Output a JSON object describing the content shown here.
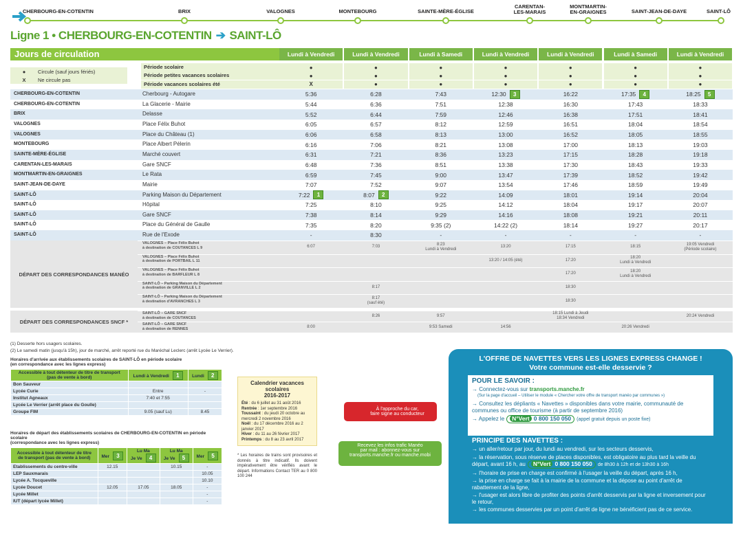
{
  "route": {
    "stops": [
      "CHERBOURG-EN-COTENTIN",
      "BRIX",
      "VALOGNES",
      "MONTEBOURG",
      "SAINTE-MÈRE-ÉGLISE",
      "CARENTAN-\nLES-MARAIS",
      "MONTMARTIN-\nEN-GRAIGNES",
      "SAINT-JEAN-DE-DAYE",
      "SAINT-LÔ"
    ]
  },
  "title": {
    "line": "Ligne 1 •",
    "from": "CHERBOURG-EN-COTENTIN",
    "to": "SAINT-LÔ"
  },
  "timetable": {
    "header": "Jours de circulation",
    "days": [
      "Lundi à Vendredi",
      "Lundi à Vendredi",
      "Lundi à Samedi",
      "Lundi à Vendredi",
      "Lundi à Vendredi",
      "Lundi à Samedi",
      "Lundi à Vendredi"
    ],
    "legend": [
      {
        "symbol": "●",
        "text": "Circule (sauf jours fériés)"
      },
      {
        "symbol": "X",
        "text": "Ne circule pas"
      }
    ],
    "periods": [
      {
        "name": "Période scolaire",
        "marks": [
          "●",
          "●",
          "●",
          "●",
          "●",
          "●",
          "●"
        ]
      },
      {
        "name": "Période petites vacances scolaires",
        "marks": [
          "●",
          "●",
          "●",
          "●",
          "●",
          "●",
          "●"
        ]
      },
      {
        "name": "Période vacances scolaires été",
        "marks": [
          "X",
          "●",
          "●",
          "●",
          "●",
          "●",
          "●"
        ]
      }
    ],
    "rows": [
      {
        "town": "CHERBOURG-EN-COTENTIN",
        "stop": "Cherbourg - Autogare",
        "times": [
          "5:36",
          "6:28",
          "7:43",
          {
            "text": "12:30",
            "badge": "3"
          },
          "16:22",
          {
            "text": "17:35",
            "badge": "4"
          },
          {
            "text": "18:25",
            "badge": "5"
          }
        ]
      },
      {
        "town": "CHERBOURG-EN-COTENTIN",
        "stop": "La Glacerie - Mairie",
        "times": [
          "5:44",
          "6:36",
          "7:51",
          "12:38",
          "16:30",
          "17:43",
          "18:33"
        ]
      },
      {
        "town": "BRIX",
        "stop": "Delasse",
        "times": [
          "5:52",
          "6:44",
          "7:59",
          "12:46",
          "16:38",
          "17:51",
          "18:41"
        ]
      },
      {
        "town": "VALOGNES",
        "stop": "Place Félix Buhot",
        "times": [
          "6:05",
          "6:57",
          "8:12",
          "12:59",
          "16:51",
          "18:04",
          "18:54"
        ]
      },
      {
        "town": "VALOGNES",
        "stop": "Place du Château (1)",
        "times": [
          "6:06",
          "6:58",
          "8:13",
          "13:00",
          "16:52",
          "18:05",
          "18:55"
        ]
      },
      {
        "town": "MONTEBOURG",
        "stop": "Place Albert Pélerin",
        "times": [
          "6:16",
          "7:06",
          "8:21",
          "13:08",
          "17:00",
          "18:13",
          "19:03"
        ]
      },
      {
        "town": "SAINTE-MÈRE-ÉGLISE",
        "stop": "Marché couvert",
        "times": [
          "6:31",
          "7:21",
          "8:36",
          "13:23",
          "17:15",
          "18:28",
          "19:18"
        ]
      },
      {
        "town": "CARENTAN-LES-MARAIS",
        "stop": "Gare SNCF",
        "times": [
          "6:48",
          "7:36",
          "8:51",
          "13:38",
          "17:30",
          "18:43",
          "19:33"
        ]
      },
      {
        "town": "MONTMARTIN-EN-GRAIGNES",
        "stop": "Le Rata",
        "times": [
          "6:59",
          "7:45",
          "9:00",
          "13:47",
          "17:39",
          "18:52",
          "19:42"
        ]
      },
      {
        "town": "SAINT-JEAN-DE-DAYE",
        "stop": "Mairie",
        "times": [
          "7:07",
          "7:52",
          "9:07",
          "13:54",
          "17:46",
          "18:59",
          "19:49"
        ]
      },
      {
        "town": "SAINT-LÔ",
        "stop": "Parking Maison du Département",
        "times": [
          {
            "text": "7:22",
            "badge": "1"
          },
          {
            "text": "8:07",
            "badge": "2"
          },
          "9:22",
          "14:09",
          "18:01",
          "19:14",
          "20:04"
        ]
      },
      {
        "town": "SAINT-LÔ",
        "stop": "Hôpital",
        "times": [
          "7:25",
          "8:10",
          "9:25",
          "14:12",
          "18:04",
          "19:17",
          "20:07"
        ]
      },
      {
        "town": "SAINT-LÔ",
        "stop": "Gare SNCF",
        "times": [
          "7:38",
          "8:14",
          "9:29",
          "14:16",
          "18:08",
          "19:21",
          "20:11"
        ]
      },
      {
        "town": "SAINT-LÔ",
        "stop": "Place du Général de Gaulle",
        "times": [
          "7:35",
          "8:20",
          "9:35 (2)",
          "14:22 (2)",
          "18:14",
          "19:27",
          "20:17"
        ]
      },
      {
        "town": "SAINT-LÔ",
        "stop": "Rue de l'Exode",
        "times": [
          "-",
          "8:30",
          "-",
          "-",
          "-",
          "-",
          "-"
        ]
      }
    ],
    "connections": [
      {
        "title": "DÉPART DES CORRESPONDANCES MANÉO",
        "rows": [
          {
            "dest": "VALOGNES – Place Félix Buhot\nà destination de COUTANCES L 9",
            "times": [
              "6:07",
              "7:03",
              "8:23\nLundi à Vendredi",
              "13:20",
              "17:15",
              "18:15",
              "19:05 Vendredi\n(Période scolaire)"
            ]
          },
          {
            "dest": "VALOGNES – Place Félix Buhot\nà destination de PORTBAIL L 11",
            "times": [
              null,
              null,
              null,
              "13:20 / 14:05 (été)",
              "17:20",
              "18:20\nLundi à Vendredi",
              null
            ]
          },
          {
            "dest": "VALOGNES – Place Félix Buhot\nà destination de BARFLEUR L 8",
            "times": [
              null,
              null,
              null,
              null,
              "17:20",
              "18:20\nLundi à Vendredi",
              null
            ]
          },
          {
            "dest": "SAINT-LÔ – Parking Maison du Département\nà destination de GRANVILLE L 2",
            "times": [
              null,
              "8:17",
              null,
              null,
              "18:30",
              null,
              null
            ]
          },
          {
            "dest": "SAINT-LÔ – Parking Maison du Département\nà destination d'AVRANCHES L 3",
            "times": [
              null,
              "8:17\n(sauf été)",
              null,
              null,
              "18:30",
              null,
              null
            ]
          }
        ]
      },
      {
        "title": "DÉPART DES CORRESPONDANCES SNCF *",
        "rows": [
          {
            "dest": "SAINT-LÔ – GARE SNCF\nà destination de COUTANCES",
            "times": [
              null,
              "8:26",
              "9:57",
              null,
              "18:15 Lundi à Jeudi\n18:34 Vendredi",
              null,
              "20:24 Vendredi"
            ]
          },
          {
            "dest": "SAINT-LÔ – GARE SNCF\nà destination de RENNES",
            "times": [
              "8:00",
              null,
              "9:53 Samedi",
              "14:56",
              null,
              "20:26 Vendredi",
              null
            ]
          }
        ]
      }
    ]
  },
  "notes": [
    "(1) Desserte hors usagers scolaires.",
    "(2) Le samedi matin (jusqu'à 15h), jour de marché, arrêt reporté rue du Maréchal Leclerc (arrêt Lycée Le Verrier)."
  ],
  "school": [
    {
      "title": "Horaires d'arrivée aux établissements scolaires de SAINT-LÔ en période scolaire\n(en correspondance avec les lignes express)",
      "header": [
        "Accessible à tout détenteur de titre de transport\n(pas de vente à bord)",
        {
          "text": "Lundi à Vendredi",
          "badge": "1"
        },
        {
          "text": "Lundi",
          "badge": "2"
        }
      ],
      "rows": [
        [
          "Bon Sauveur",
          null,
          null
        ],
        [
          "Lycée Curie",
          "Entre",
          "-"
        ],
        [
          "Institut Agneaux",
          "7:40 et 7:55",
          null
        ],
        [
          "Lycée Le Verrier (arrêt place du Goulle)",
          null,
          null
        ],
        [
          "Groupe FIM",
          "9.05 (sauf Lu)",
          "8.45"
        ]
      ]
    },
    {
      "title": "Horaires de départ des établissements scolaires de CHERBOURG-EN-COTENTIN en période scolaire\n(correspondance avec les lignes express)",
      "header": [
        "Accessible à tout détenteur de titre\nde transport (pas de vente à bord)",
        {
          "text": "Mer",
          "badge": "3"
        },
        {
          "text": "Lu Ma\nJe Ve",
          "badge": "4"
        },
        {
          "text": "Lu Ma\nJe Ve",
          "badge": "5"
        },
        {
          "text": "Mer",
          "badge": "5"
        }
      ],
      "rows": [
        [
          "Etablissements du centre-ville",
          "12.15",
          null,
          "10.15",
          "-"
        ],
        [
          "LEP Sauxmarais",
          null,
          null,
          null,
          "10.05"
        ],
        [
          "Lycée A. Tocqueville",
          null,
          null,
          null,
          "10.10"
        ],
        [
          "Lycée Doucet",
          "12.05",
          "17.05",
          "18.05",
          "-"
        ],
        [
          "Lycée Millet",
          null,
          null,
          null,
          "-"
        ],
        [
          "IUT (départ lycée Millet)",
          null,
          null,
          null,
          "-"
        ]
      ]
    }
  ],
  "calendar": {
    "title": "Calendrier vacances scolaires\n2016-2017",
    "entries": [
      {
        "label": "Été",
        "text": " : du 6 juillet au 31 août 2016"
      },
      {
        "label": "Rentrée",
        "text": " : 1er septembre 2016"
      },
      {
        "label": "Toussaint",
        "text": " : du jeudi 20 octobre au mercredi 2 novembre 2016"
      },
      {
        "label": "Noël",
        "text": " : du 17 décembre 2016 au 2 janvier 2017"
      },
      {
        "label": "Hiver",
        "text": " : du 11 au 26 février 2017"
      },
      {
        "label": "Printemps",
        "text": " : du 8 au 23 avril 2017"
      }
    ],
    "note": "* Les horaires de trains sont provisoires et donnés à titre indicatif. Ils doivent impérativement être vérifiés avant le départ. Informations Contact TER au 0 800 100 244"
  },
  "callouts": [
    "À l'approche du car,\nfaire signe au conducteur",
    "Recevez les infos trafic Manéo\npar mail : abonnez-vous sur\ntransports.manche.fr ou manche.mobi"
  ],
  "navettes": {
    "title": "L'OFFRE DE NAVETTES VERS LES LIGNES EXPRESS CHANGE !",
    "subtitle": "Votre commune est-elle desservie ?",
    "know_title": "POUR LE SAVOIR :",
    "know": [
      {
        "text": "Connectez-vous sur ",
        "link": "transports.manche.fr",
        "sub": "(Sur la page d'accueil – Utiliser le module « Chercher votre offre de transport manéo par communes »)"
      },
      {
        "text": "Consultez les dépliants « Navettes » disponibles dans votre mairie, communauté de communes ou office de tourisme (à partir de septembre 2016)"
      },
      {
        "text": "Appelez le",
        "vert": "N°Vert",
        "num": "0 800 150 050",
        "after": "(appel gratuit depuis un poste fixe)"
      }
    ],
    "principle_title": "PRINCIPE DES NAVETTES :",
    "principle": [
      {
        "text": "un aller/retour par jour, du lundi au vendredi, sur les secteurs desservis,"
      },
      {
        "text": "la réservation, sous réserve de places disponibles, est obligatoire au plus tard la veille du départ, avant 16 h, au",
        "vert": "N°Vert",
        "num": "0 800 150 050",
        "after": "de 8h30 à 12h et de 13h30 à 16h"
      },
      {
        "text": "l'horaire de prise en charge est confirmé à l'usager la veille du départ, après 16 h,"
      },
      {
        "text": "la prise en charge se fait à la mairie de la commune et la dépose au point d'arrêt de rabattement de la ligne,"
      },
      {
        "text": "l'usager est alors libre de profiter des points d'arrêt desservis par la ligne et inversement pour le retour,"
      },
      {
        "text": "les communes desservies par un point d'arrêt de ligne ne bénéficient pas de ce service."
      }
    ]
  }
}
